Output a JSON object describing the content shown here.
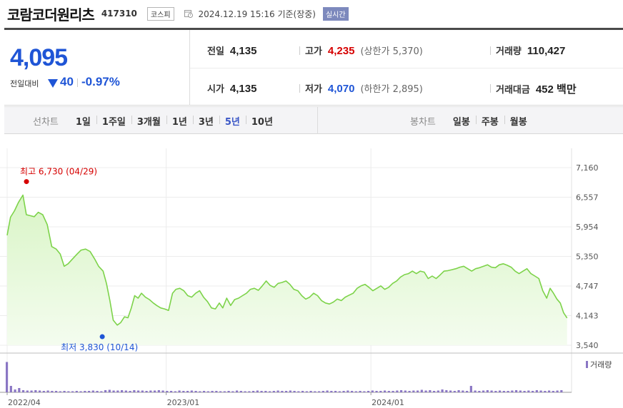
{
  "header": {
    "name": "코람코더원리츠",
    "code": "417310",
    "market": "코스피",
    "base_time": "2024.12.19 15:16 기준(장중)",
    "live": "실시간"
  },
  "quote": {
    "price": "4,095",
    "change_label": "전일대비",
    "change_amount": "40",
    "change_pct": "-0.97%",
    "prev_close_label": "전일",
    "prev_close": "4,135",
    "high_label": "고가",
    "high": "4,235",
    "upper_limit_label": "상한가",
    "upper_limit": "5,370",
    "volume_label": "거래량",
    "volume": "110,427",
    "open_label": "시가",
    "open": "4,135",
    "low_label": "저가",
    "low": "4,070",
    "lower_limit_label": "하한가",
    "lower_limit": "2,895",
    "amount_label": "거래대금",
    "amount": "452",
    "amount_unit": "백만"
  },
  "tabs": {
    "line_title": "선차트",
    "line_periods": [
      "1일",
      "1주일",
      "3개월",
      "1년",
      "3년",
      "5년",
      "10년"
    ],
    "line_active": "5년",
    "candle_title": "봉차트",
    "candle_periods": [
      "일봉",
      "주봉",
      "월봉"
    ]
  },
  "colors": {
    "up": "#d60000",
    "down": "#1f55d6",
    "line": "#7dd34a",
    "area": "#d9f5c6",
    "volume": "#8a76c4"
  },
  "chart_data": {
    "type": "area",
    "y_ticks": [
      "7,160",
      "6,557",
      "5,954",
      "5,350",
      "4,747",
      "4,143",
      "3,540"
    ],
    "ylim": [
      3540,
      7160
    ],
    "x_labels": [
      {
        "label": "2022/04",
        "t": 0
      },
      {
        "label": "2023/01",
        "t": 0.2818
      },
      {
        "label": "2024/01",
        "t": 0.6445
      }
    ],
    "max_annotation": {
      "label": "최고 6,730 (04/29)",
      "t": 0.0279,
      "value": 6730
    },
    "min_annotation": {
      "label": "최저 3,830 (10/14)",
      "t": 0.1622,
      "value": 3830
    },
    "volume_legend": "거래량",
    "series": [
      {
        "values": [
          [
            0.0,
            5780
          ],
          [
            0.006,
            6150
          ],
          [
            0.013,
            6280
          ],
          [
            0.02,
            6450
          ],
          [
            0.028,
            6600
          ],
          [
            0.034,
            6200
          ],
          [
            0.041,
            6180
          ],
          [
            0.048,
            6160
          ],
          [
            0.055,
            6250
          ],
          [
            0.063,
            6200
          ],
          [
            0.071,
            6000
          ],
          [
            0.079,
            5550
          ],
          [
            0.087,
            5500
          ],
          [
            0.094,
            5400
          ],
          [
            0.101,
            5150
          ],
          [
            0.108,
            5200
          ],
          [
            0.116,
            5300
          ],
          [
            0.124,
            5400
          ],
          [
            0.131,
            5480
          ],
          [
            0.139,
            5500
          ],
          [
            0.147,
            5450
          ],
          [
            0.155,
            5300
          ],
          [
            0.162,
            5150
          ],
          [
            0.17,
            5050
          ],
          [
            0.176,
            4800
          ],
          [
            0.182,
            4450
          ],
          [
            0.188,
            4050
          ],
          [
            0.195,
            3950
          ],
          [
            0.201,
            4000
          ],
          [
            0.208,
            4120
          ],
          [
            0.214,
            4100
          ],
          [
            0.22,
            4300
          ],
          [
            0.226,
            4550
          ],
          [
            0.232,
            4500
          ],
          [
            0.238,
            4600
          ],
          [
            0.245,
            4520
          ],
          [
            0.252,
            4470
          ],
          [
            0.259,
            4400
          ],
          [
            0.265,
            4350
          ],
          [
            0.272,
            4300
          ],
          [
            0.279,
            4280
          ],
          [
            0.286,
            4250
          ],
          [
            0.293,
            4600
          ],
          [
            0.299,
            4680
          ],
          [
            0.306,
            4700
          ],
          [
            0.313,
            4650
          ],
          [
            0.32,
            4550
          ],
          [
            0.327,
            4520
          ],
          [
            0.334,
            4600
          ],
          [
            0.341,
            4650
          ],
          [
            0.348,
            4520
          ],
          [
            0.355,
            4430
          ],
          [
            0.362,
            4300
          ],
          [
            0.369,
            4280
          ],
          [
            0.376,
            4400
          ],
          [
            0.382,
            4300
          ],
          [
            0.389,
            4500
          ],
          [
            0.396,
            4350
          ],
          [
            0.403,
            4470
          ],
          [
            0.41,
            4500
          ],
          [
            0.417,
            4550
          ],
          [
            0.424,
            4600
          ],
          [
            0.431,
            4680
          ],
          [
            0.438,
            4700
          ],
          [
            0.445,
            4660
          ],
          [
            0.452,
            4750
          ],
          [
            0.459,
            4850
          ],
          [
            0.466,
            4760
          ],
          [
            0.473,
            4720
          ],
          [
            0.48,
            4800
          ],
          [
            0.487,
            4820
          ],
          [
            0.494,
            4850
          ],
          [
            0.501,
            4780
          ],
          [
            0.508,
            4680
          ],
          [
            0.515,
            4650
          ],
          [
            0.522,
            4550
          ],
          [
            0.529,
            4480
          ],
          [
            0.536,
            4520
          ],
          [
            0.543,
            4600
          ],
          [
            0.55,
            4550
          ],
          [
            0.557,
            4450
          ],
          [
            0.564,
            4400
          ],
          [
            0.571,
            4380
          ],
          [
            0.578,
            4420
          ],
          [
            0.585,
            4480
          ],
          [
            0.592,
            4450
          ],
          [
            0.599,
            4520
          ],
          [
            0.606,
            4560
          ],
          [
            0.613,
            4600
          ],
          [
            0.62,
            4700
          ],
          [
            0.627,
            4750
          ],
          [
            0.634,
            4780
          ],
          [
            0.641,
            4720
          ],
          [
            0.648,
            4650
          ],
          [
            0.655,
            4700
          ],
          [
            0.662,
            4750
          ],
          [
            0.669,
            4680
          ],
          [
            0.676,
            4720
          ],
          [
            0.683,
            4800
          ],
          [
            0.69,
            4850
          ],
          [
            0.697,
            4930
          ],
          [
            0.704,
            4980
          ],
          [
            0.711,
            5000
          ],
          [
            0.718,
            5050
          ],
          [
            0.725,
            5000
          ],
          [
            0.732,
            5050
          ],
          [
            0.739,
            5030
          ],
          [
            0.746,
            4900
          ],
          [
            0.753,
            4950
          ],
          [
            0.76,
            4900
          ],
          [
            0.767,
            4970
          ],
          [
            0.774,
            5050
          ],
          [
            0.781,
            5060
          ],
          [
            0.788,
            5080
          ],
          [
            0.795,
            5100
          ],
          [
            0.802,
            5130
          ],
          [
            0.809,
            5150
          ],
          [
            0.816,
            5100
          ],
          [
            0.823,
            5050
          ],
          [
            0.83,
            5100
          ],
          [
            0.837,
            5120
          ],
          [
            0.844,
            5150
          ],
          [
            0.851,
            5180
          ],
          [
            0.858,
            5130
          ],
          [
            0.865,
            5120
          ],
          [
            0.872,
            5180
          ],
          [
            0.879,
            5200
          ],
          [
            0.886,
            5170
          ],
          [
            0.893,
            5130
          ],
          [
            0.9,
            5050
          ],
          [
            0.907,
            5000
          ],
          [
            0.914,
            5050
          ],
          [
            0.921,
            5100
          ],
          [
            0.928,
            5000
          ],
          [
            0.935,
            4950
          ],
          [
            0.942,
            4900
          ],
          [
            0.949,
            4650
          ],
          [
            0.956,
            4500
          ],
          [
            0.962,
            4700
          ],
          [
            0.968,
            4600
          ],
          [
            0.974,
            4480
          ],
          [
            0.98,
            4400
          ],
          [
            0.986,
            4200
          ],
          [
            0.992,
            4095
          ]
        ]
      }
    ],
    "volume": [
      0.85,
      0.18,
      0.08,
      0.12,
      0.06,
      0.05,
      0.05,
      0.06,
      0.05,
      0.04,
      0.05,
      0.04,
      0.04,
      0.03,
      0.04,
      0.03,
      0.03,
      0.04,
      0.03,
      0.04,
      0.04,
      0.05,
      0.04,
      0.03,
      0.06,
      0.07,
      0.05,
      0.05,
      0.06,
      0.05,
      0.04,
      0.06,
      0.05,
      0.05,
      0.04,
      0.05,
      0.05,
      0.06,
      0.05,
      0.04,
      0.04,
      0.03,
      0.05,
      0.04,
      0.04,
      0.05,
      0.04,
      0.03,
      0.04,
      0.03,
      0.04,
      0.04,
      0.03,
      0.03,
      0.04,
      0.03,
      0.05,
      0.04,
      0.03,
      0.03,
      0.04,
      0.05,
      0.04,
      0.04,
      0.03,
      0.04,
      0.05,
      0.04,
      0.04,
      0.05,
      0.04,
      0.03,
      0.04,
      0.03,
      0.04,
      0.03,
      0.03,
      0.04,
      0.05,
      0.04,
      0.04,
      0.03,
      0.04,
      0.05,
      0.04,
      0.03,
      0.04,
      0.03,
      0.04,
      0.05,
      0.04,
      0.04,
      0.05,
      0.04,
      0.04,
      0.05,
      0.06,
      0.05,
      0.04,
      0.05,
      0.05,
      0.07,
      0.05,
      0.06,
      0.04,
      0.05,
      0.08,
      0.06,
      0.05,
      0.04,
      0.06,
      0.05,
      0.04,
      0.18,
      0.05,
      0.04,
      0.05,
      0.06,
      0.05,
      0.04,
      0.05,
      0.04,
      0.04,
      0.05,
      0.06,
      0.05,
      0.04,
      0.05,
      0.04,
      0.06,
      0.05,
      0.04,
      0.05,
      0.04,
      0.05,
      0.06
    ]
  }
}
